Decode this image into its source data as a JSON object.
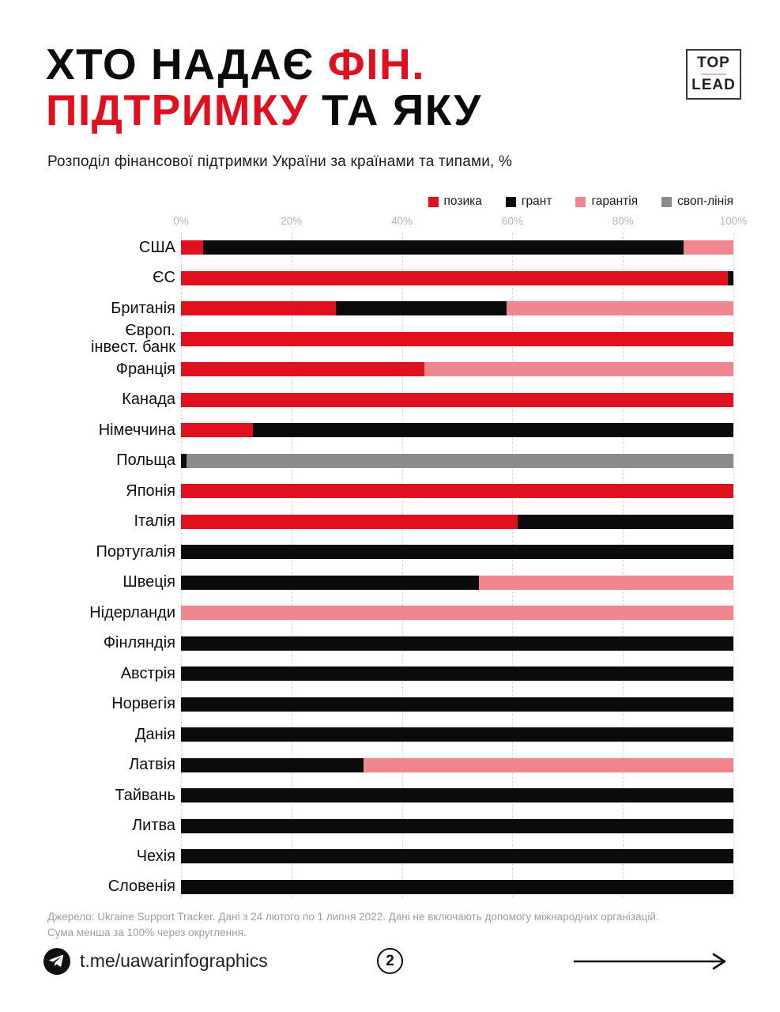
{
  "header": {
    "title": {
      "l1_black": "ХТО НАДАЄ ",
      "l1_red": "ФІН.",
      "l2_red": "ПІДТРИМКУ ",
      "l2_black": "ТА ЯКУ"
    },
    "logo": {
      "top": "TOP",
      "lead": "LEAD"
    },
    "subtitle": "Розподіл фінансової підтримки України за країнами та типами, %"
  },
  "colors": {
    "loan_red": "#E1101E",
    "grant_black": "#0B0B0B",
    "guarantee_pink": "#F0868E",
    "swap_gray": "#8C8C8C"
  },
  "chart_data": {
    "type": "bar",
    "orientation": "horizontal_stacked",
    "title": "ХТО НАДАЄ ФІН. ПІДТРИМКУ ТА ЯКУ",
    "subtitle": "Розподіл фінансової підтримки України за країнами та типами, %",
    "unit": "%",
    "xlim": [
      0,
      100
    ],
    "x_ticks": [
      "0%",
      "20%",
      "40%",
      "60%",
      "80%",
      "100%"
    ],
    "grid": "vertical-dashed",
    "legend_position": "top-right",
    "series_names": [
      "позика",
      "грант",
      "гарантія",
      "своп-лінія"
    ],
    "series_keys": [
      "loan",
      "grant",
      "guarantee",
      "swap-line"
    ],
    "series_colors": [
      "#E1101E",
      "#0B0B0B",
      "#F0868E",
      "#8C8C8C"
    ],
    "categories": [
      "США",
      "ЄС",
      "Британія",
      "Європ.\nінвест. банк",
      "Франція",
      "Канада",
      "Німеччина",
      "Польща",
      "Японія",
      "Італія",
      "Португалія",
      "Швеція",
      "Нідерланди",
      "Фінляндія",
      "Австрія",
      "Норвегія",
      "Данія",
      "Латвія",
      "Тайвань",
      "Литва",
      "Чехія",
      "Словенія"
    ],
    "values": [
      [
        4,
        87,
        9,
        0
      ],
      [
        99,
        1,
        0,
        0
      ],
      [
        28,
        31,
        41,
        0
      ],
      [
        100,
        0,
        0,
        0
      ],
      [
        44,
        0,
        56,
        0
      ],
      [
        100,
        0,
        0,
        0
      ],
      [
        13,
        87,
        0,
        0
      ],
      [
        0,
        1,
        0,
        99
      ],
      [
        100,
        0,
        0,
        0
      ],
      [
        61,
        39,
        0,
        0
      ],
      [
        0,
        100,
        0,
        0
      ],
      [
        0,
        54,
        46,
        0
      ],
      [
        0,
        0,
        100,
        0
      ],
      [
        0,
        100,
        0,
        0
      ],
      [
        0,
        100,
        0,
        0
      ],
      [
        0,
        100,
        0,
        0
      ],
      [
        0,
        100,
        0,
        0
      ],
      [
        0,
        33,
        67,
        0
      ],
      [
        0,
        100,
        0,
        0
      ],
      [
        0,
        100,
        0,
        0
      ],
      [
        0,
        100,
        0,
        0
      ],
      [
        0,
        100,
        0,
        0
      ]
    ]
  },
  "footer": {
    "source": "Джерело: Ukraine Support Tracker. Дані з 24 лютого по 1 липня 2022. Дані не включають допомогу міжнародних організацій.\nСума менша за 100% через округлення.",
    "telegram_handle": "t.me/uawarinfographics",
    "page_number": "2"
  }
}
